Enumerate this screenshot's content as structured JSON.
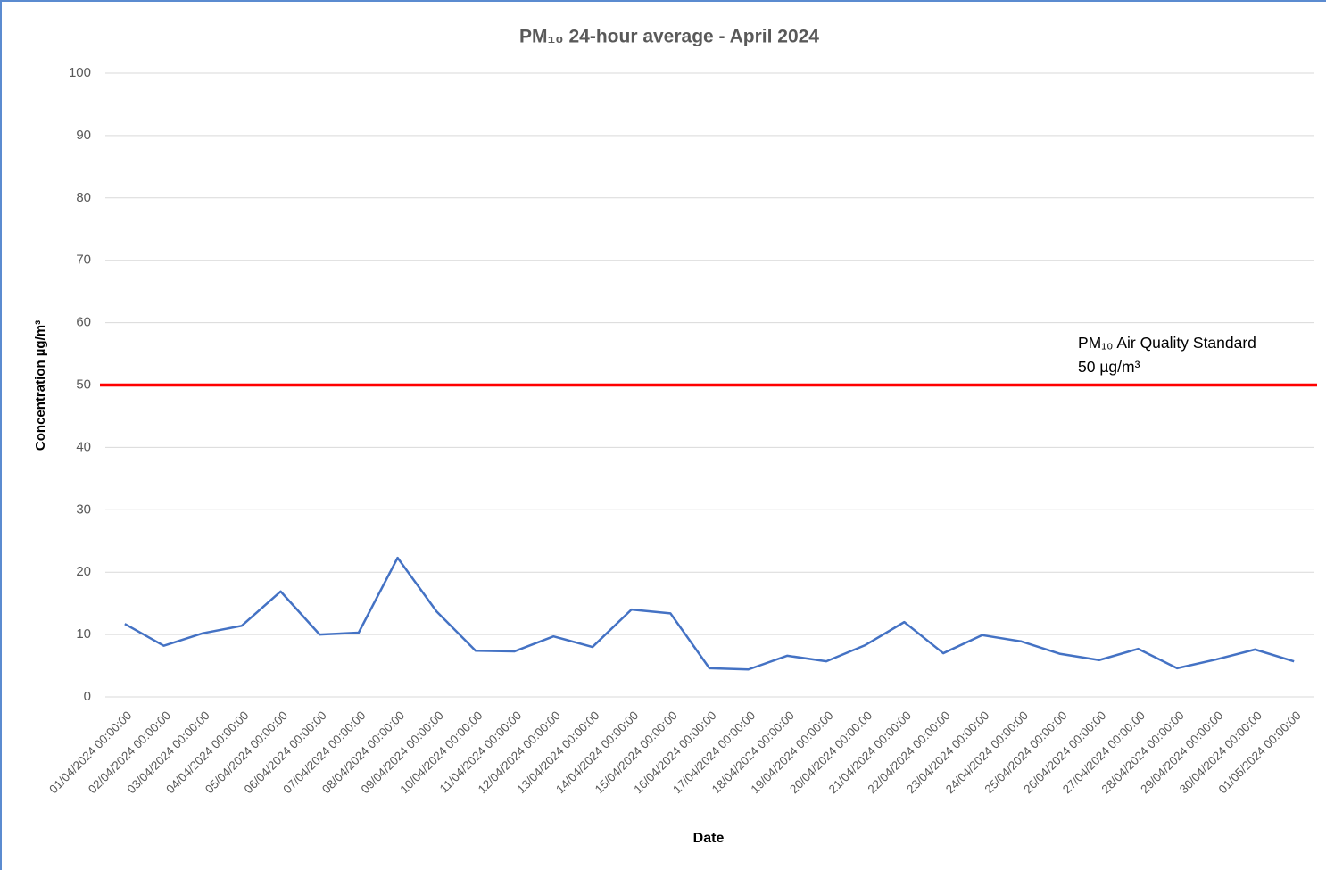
{
  "chart_data": {
    "type": "line",
    "title": "PM₁₀ 24-hour average - April 2024",
    "x_label": "Date",
    "y_label": "Concentration µg/m³",
    "categories": [
      "01/04/2024 00:00:00",
      "02/04/2024 00:00:00",
      "03/04/2024 00:00:00",
      "04/04/2024 00:00:00",
      "05/04/2024 00:00:00",
      "06/04/2024 00:00:00",
      "07/04/2024 00:00:00",
      "08/04/2024 00:00:00",
      "09/04/2024 00:00:00",
      "10/04/2024 00:00:00",
      "11/04/2024 00:00:00",
      "12/04/2024 00:00:00",
      "13/04/2024 00:00:00",
      "14/04/2024 00:00:00",
      "15/04/2024 00:00:00",
      "16/04/2024 00:00:00",
      "17/04/2024 00:00:00",
      "18/04/2024 00:00:00",
      "19/04/2024 00:00:00",
      "20/04/2024 00:00:00",
      "21/04/2024 00:00:00",
      "22/04/2024 00:00:00",
      "23/04/2024 00:00:00",
      "24/04/2024 00:00:00",
      "25/04/2024 00:00:00",
      "26/04/2024 00:00:00",
      "27/04/2024 00:00:00",
      "28/04/2024 00:00:00",
      "29/04/2024 00:00:00",
      "30/04/2024 00:00:00",
      "01/05/2024 00:00:00"
    ],
    "values": [
      11.7,
      8.2,
      10.2,
      11.4,
      16.9,
      10.0,
      10.3,
      22.3,
      13.7,
      7.4,
      7.3,
      9.7,
      8.0,
      14.0,
      13.4,
      4.6,
      4.4,
      6.6,
      5.7,
      8.3,
      12.0,
      7.0,
      9.9,
      8.9,
      6.9,
      5.9,
      7.7,
      4.6,
      6.0,
      7.6,
      5.7
    ],
    "color": "#4472c4",
    "threshold": {
      "value": 50,
      "color": "#ff0000",
      "label": "PM₁₀ Air Quality Standard",
      "value_label": "50 µg/m³"
    },
    "ylim": [
      0,
      100
    ],
    "yticks": [
      0,
      10,
      20,
      30,
      40,
      50,
      60,
      70,
      80,
      90,
      100
    ],
    "grid": true
  }
}
